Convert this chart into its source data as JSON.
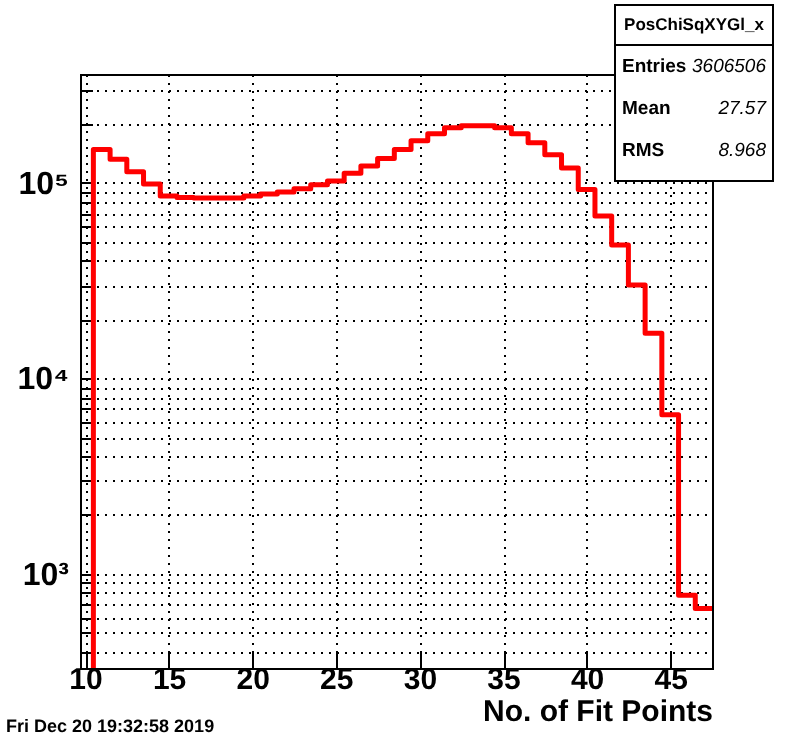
{
  "chart_data": {
    "type": "histogram",
    "xlabel": "No. of Fit Points",
    "bins": [
      10.5,
      11.5,
      12.5,
      13.5,
      14.5,
      15.5,
      16.5,
      17.5,
      18.5,
      19.5,
      20.5,
      21.5,
      22.5,
      23.5,
      24.5,
      25.5,
      26.5,
      27.5,
      28.5,
      29.5,
      30.5,
      31.5,
      32.5,
      33.5,
      34.5,
      35.5,
      36.5,
      37.5,
      38.5,
      39.5,
      40.5,
      41.5,
      42.5,
      43.5,
      44.5,
      45.5,
      46.5,
      47.5
    ],
    "values": [
      148000,
      132000,
      114000,
      98600,
      85500,
      84100,
      83600,
      83600,
      83600,
      85500,
      87700,
      89700,
      93200,
      97700,
      102000,
      112000,
      122000,
      133000,
      148000,
      164000,
      178000,
      191000,
      196000,
      196000,
      191000,
      178000,
      160000,
      139000,
      119000,
      92500,
      67600,
      48100,
      30000,
      17000,
      6520,
      778,
      664
    ],
    "color": "#ff0000",
    "log": "y",
    "xlim": [
      9.7,
      47.5
    ],
    "xticks": [
      10,
      15,
      20,
      25,
      30,
      35,
      40,
      45
    ],
    "ylim": [
      330,
      360000
    ],
    "yticks": [
      {
        "value": 400,
        "label": null
      },
      {
        "value": 500,
        "label": null
      },
      {
        "value": 600,
        "label": null
      },
      {
        "value": 700,
        "label": null
      },
      {
        "value": 800,
        "label": null
      },
      {
        "value": 900,
        "label": null
      },
      {
        "value": 1000,
        "label": "10³"
      },
      {
        "value": 2000,
        "label": null
      },
      {
        "value": 3000,
        "label": null
      },
      {
        "value": 4000,
        "label": null
      },
      {
        "value": 5000,
        "label": null
      },
      {
        "value": 6000,
        "label": null
      },
      {
        "value": 7000,
        "label": null
      },
      {
        "value": 8000,
        "label": null
      },
      {
        "value": 9000,
        "label": null
      },
      {
        "value": 10000,
        "label": "10⁴"
      },
      {
        "value": 20000,
        "label": null
      },
      {
        "value": 30000,
        "label": null
      },
      {
        "value": 40000,
        "label": null
      },
      {
        "value": 50000,
        "label": null
      },
      {
        "value": 60000,
        "label": null
      },
      {
        "value": 70000,
        "label": null
      },
      {
        "value": 80000,
        "label": null
      },
      {
        "value": 90000,
        "label": null
      },
      {
        "value": 100000,
        "label": "10⁵"
      },
      {
        "value": 200000,
        "label": null
      },
      {
        "value": 300000,
        "label": null
      }
    ],
    "grid": true,
    "line_style": "solid",
    "annotations": [
      "PosChiSqXYGl_x",
      "Entries 3606506",
      "Mean 27.57",
      "RMS 8.968",
      "Fri Dec 20 19:32:58 2019"
    ]
  }
}
